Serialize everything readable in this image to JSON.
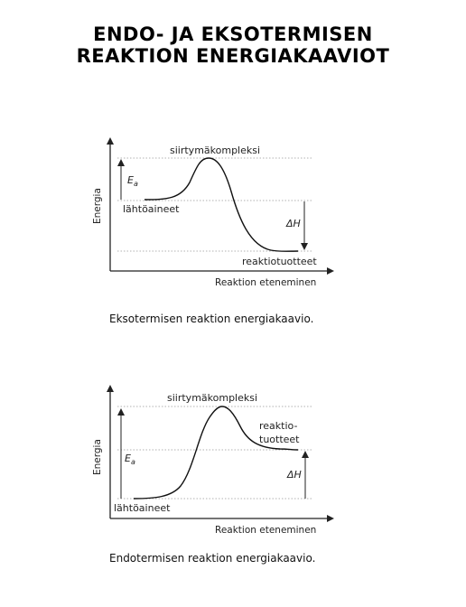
{
  "title": {
    "line1": "ENDO- JA EKSOTERMISEN",
    "line2": "REAKTION ENERGIAKAAVIOT"
  },
  "exothermic": {
    "y_axis_label": "Energia",
    "x_axis_label": "Reaktion eteneminen",
    "transition_state_label": "siirtymäkompleksi",
    "reactants_label": "lähtöaineet",
    "products_label": "reaktiotuotteet",
    "activation_energy_label": "E",
    "activation_energy_sub": "a",
    "enthalpy_label": "ΔH",
    "caption": "Eksotermisen reaktion energiakaavio."
  },
  "endothermic": {
    "y_axis_label": "Energia",
    "x_axis_label": "Reaktion eteneminen",
    "transition_state_label": "siirtymäkompleksi",
    "reactants_label": "lähtöaineet",
    "products_label_line1": "reaktio-",
    "products_label_line2": "tuotteet",
    "activation_energy_label": "E",
    "activation_energy_sub": "a",
    "enthalpy_label": "ΔH",
    "caption": "Endotermisen reaktion energiakaavio."
  }
}
